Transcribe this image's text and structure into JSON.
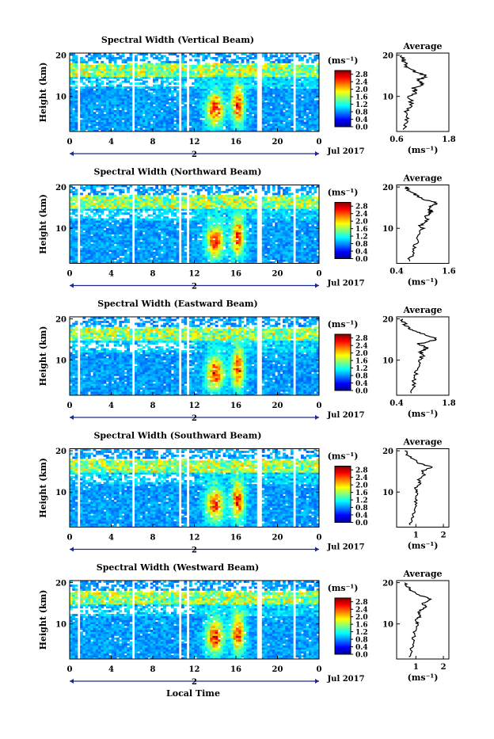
{
  "figure": {
    "shared_xlabel": "Local Time",
    "month_label": "Jul 2017",
    "day_marker": "2",
    "ylabel": "Height (km)",
    "colorbar_unit": "(ms⁻¹)",
    "profile_title": "Average",
    "profile_xlabel": "(ms⁻¹)"
  },
  "chart_data": [
    {
      "type": "heatmap",
      "title": "Spectral Width (Vertical Beam)",
      "x_ticks": [
        "0",
        "4",
        "8",
        "12",
        "16",
        "20",
        "0"
      ],
      "y_ticks": [
        "10",
        "20"
      ],
      "xlim": [
        0,
        24
      ],
      "ylim": [
        1.5,
        20.5
      ],
      "colorbar_ticks": [
        "0.0",
        "0.4",
        "0.8",
        "1.2",
        "1.6",
        "2.0",
        "2.4",
        "2.8"
      ],
      "clim": [
        0,
        3.0
      ],
      "profile_ticks": {
        "x": [
          "0.6",
          "1.8"
        ],
        "y": [
          "10",
          "20"
        ]
      },
      "profile_xlim": [
        0.6,
        1.8
      ],
      "profile": {
        "height": [
          2,
          4,
          6,
          8,
          10,
          11,
          12,
          13,
          14,
          15,
          16,
          17,
          18,
          19,
          20
        ],
        "value": [
          0.75,
          0.85,
          0.8,
          0.95,
          0.9,
          1.05,
          1.0,
          1.2,
          1.1,
          1.3,
          1.0,
          0.85,
          0.8,
          0.75,
          0.7
        ]
      }
    },
    {
      "type": "heatmap",
      "title": "Spectral Width (Northward Beam)",
      "x_ticks": [
        "0",
        "4",
        "8",
        "12",
        "16",
        "20",
        "0"
      ],
      "y_ticks": [
        "10",
        "20"
      ],
      "xlim": [
        0,
        24
      ],
      "ylim": [
        1.5,
        20.5
      ],
      "colorbar_ticks": [
        "0.0",
        "0.4",
        "0.8",
        "1.2",
        "1.6",
        "2.0",
        "2.4",
        "2.8"
      ],
      "clim": [
        0,
        3.0
      ],
      "profile_ticks": {
        "x": [
          "0.4",
          "1.6"
        ],
        "y": [
          "10",
          "20"
        ]
      },
      "profile_xlim": [
        0.4,
        1.6
      ],
      "profile": {
        "height": [
          2,
          4,
          6,
          8,
          10,
          11,
          12,
          13,
          14,
          15,
          16,
          17,
          18,
          19,
          20
        ],
        "value": [
          0.7,
          0.75,
          0.85,
          0.9,
          1.0,
          0.95,
          1.1,
          1.05,
          1.2,
          1.15,
          1.35,
          1.05,
          0.85,
          0.7,
          0.6
        ]
      }
    },
    {
      "type": "heatmap",
      "title": "Spectral Width (Eastward Beam)",
      "x_ticks": [
        "0",
        "4",
        "8",
        "12",
        "16",
        "20",
        "0"
      ],
      "y_ticks": [
        "10",
        "20"
      ],
      "xlim": [
        0,
        24
      ],
      "ylim": [
        1.5,
        20.5
      ],
      "colorbar_ticks": [
        "0.0",
        "0.4",
        "0.8",
        "1.2",
        "1.6",
        "2.0",
        "2.4",
        "2.8"
      ],
      "clim": [
        0,
        3.0
      ],
      "profile_ticks": {
        "x": [
          "0.4",
          "1.8"
        ],
        "y": [
          "10",
          "20"
        ]
      },
      "profile_xlim": [
        0.4,
        1.8
      ],
      "profile": {
        "height": [
          2,
          4,
          6,
          8,
          10,
          11,
          12,
          13,
          14,
          15,
          16,
          17,
          18,
          19,
          20
        ],
        "value": [
          0.8,
          0.85,
          0.9,
          0.95,
          1.0,
          1.1,
          1.05,
          1.2,
          1.0,
          1.5,
          1.2,
          0.9,
          0.7,
          0.6,
          0.55
        ]
      }
    },
    {
      "type": "heatmap",
      "title": "Spectral Width (Southward Beam)",
      "x_ticks": [
        "0",
        "4",
        "8",
        "12",
        "16",
        "20",
        "0"
      ],
      "y_ticks": [
        "10",
        "20"
      ],
      "xlim": [
        0,
        24
      ],
      "ylim": [
        1.5,
        20.5
      ],
      "colorbar_ticks": [
        "0.0",
        "0.4",
        "0.8",
        "1.2",
        "1.6",
        "2.0",
        "2.4",
        "2.8"
      ],
      "clim": [
        0,
        3.0
      ],
      "profile_ticks": {
        "x": [
          "1",
          "2"
        ],
        "y": [
          "10",
          "20"
        ]
      },
      "profile_xlim": [
        0.3,
        2.2
      ],
      "profile": {
        "height": [
          2,
          4,
          6,
          8,
          10,
          11,
          12,
          13,
          14,
          15,
          16,
          17,
          18,
          19,
          20
        ],
        "value": [
          0.8,
          0.9,
          0.95,
          1.0,
          1.05,
          1.0,
          1.15,
          1.1,
          1.3,
          1.2,
          1.6,
          1.1,
          0.9,
          0.7,
          0.6
        ]
      }
    },
    {
      "type": "heatmap",
      "title": "Spectral Width (Westward Beam)",
      "x_ticks": [
        "0",
        "4",
        "8",
        "12",
        "16",
        "20",
        "0"
      ],
      "y_ticks": [
        "10",
        "20"
      ],
      "xlim": [
        0,
        24
      ],
      "ylim": [
        1.5,
        20.5
      ],
      "colorbar_ticks": [
        "0.0",
        "0.4",
        "0.8",
        "1.2",
        "1.6",
        "2.0",
        "2.4",
        "2.8"
      ],
      "clim": [
        0,
        3.0
      ],
      "profile_ticks": {
        "x": [
          "1",
          "2"
        ],
        "y": [
          "10",
          "20"
        ]
      },
      "profile_xlim": [
        0.3,
        2.2
      ],
      "profile": {
        "height": [
          2,
          4,
          6,
          8,
          10,
          11,
          12,
          13,
          14,
          15,
          16,
          17,
          18,
          19,
          20
        ],
        "value": [
          0.75,
          0.85,
          0.9,
          0.95,
          1.05,
          1.0,
          1.2,
          1.1,
          1.35,
          1.25,
          1.55,
          1.1,
          0.85,
          0.7,
          0.6
        ]
      }
    }
  ]
}
